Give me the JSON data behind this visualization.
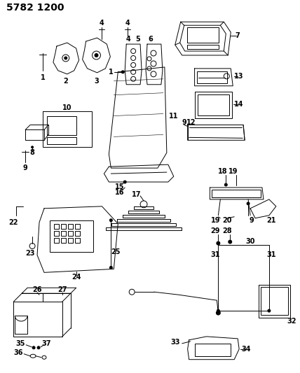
{
  "title": "5782 1200",
  "bg_color": "#ffffff",
  "line_color": "#000000",
  "title_fontsize": 10,
  "label_fontsize": 7,
  "figsize": [
    4.28,
    5.33
  ],
  "dpi": 100
}
